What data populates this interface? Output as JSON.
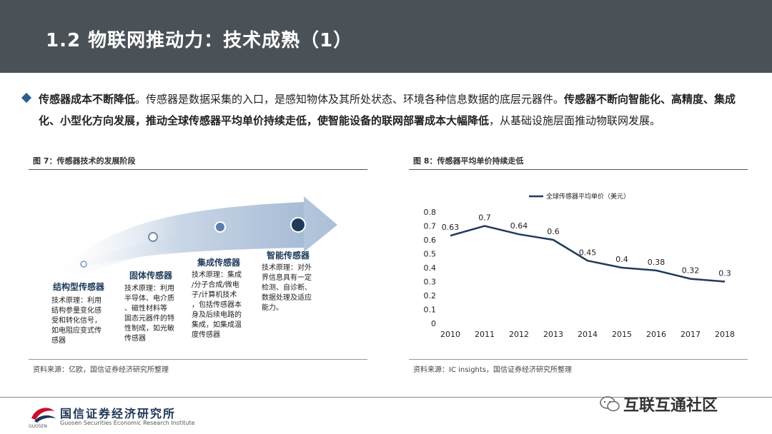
{
  "header": {
    "title": "1.2 物联网推动力：技术成熟（1）"
  },
  "bullet": {
    "b1": "传感器成本不断降低",
    "t1": "。传感器是数据采集的入口，是感知物体及其所处状态、环境各种信息数据的底层元器件。",
    "b2": "传感器不断向智能化、高精度、集成化、小型化方向发展，推动全球传感器平均单价持续走低，使智能设备的联网部署成本大幅降低",
    "t2": "，从基础设施层面推动物联网发展。"
  },
  "fig7": {
    "label": "图 7：传感器技术的发展阶段",
    "source": "资料来源：亿欧，国信证券经济研究所整理",
    "stages": [
      {
        "title": "结构型传感器",
        "desc": [
          "技术原理：利用",
          "结构参量变化感",
          "受和转化信号，",
          "如电阻应变式传",
          "感器"
        ]
      },
      {
        "title": "固体传感器",
        "desc": [
          "技术原理：利用",
          "半导体、电介质",
          "、磁性材料等",
          "固态元器件的特",
          "性制成，如光敏",
          "传感器"
        ]
      },
      {
        "title": "集成传感器",
        "desc": [
          "技术原理：集成",
          "/分子合成/微电",
          "子/计算机技术",
          "，包括传感器本",
          "身及后续电路的",
          "集成，如集成温",
          "度传感器"
        ]
      },
      {
        "title": "智能传感器",
        "desc": [
          "技术原理：对外",
          "界信息具有一定",
          "检测、自诊断、",
          "数据处理及适应",
          "能力。"
        ]
      }
    ]
  },
  "fig8": {
    "label": "图 8：传感器平均单价持续走低",
    "source": "资料来源：IC insights，国信证券经济研究所整理"
  },
  "chart_data": {
    "type": "line",
    "title": "",
    "xlabel": "",
    "ylabel": "",
    "x": [
      "2010",
      "2011",
      "2012",
      "2013",
      "2014",
      "2015",
      "2016",
      "2017",
      "2018"
    ],
    "series": [
      {
        "name": "全球传感器平均单价（美元）",
        "values": [
          0.63,
          0.7,
          0.64,
          0.6,
          0.45,
          0.4,
          0.38,
          0.32,
          0.3
        ]
      }
    ],
    "data_labels": [
      "0.63",
      "0.7",
      "0.64",
      "0.6",
      "0.45",
      "0.4",
      "0.38",
      "0.32",
      "0.3"
    ],
    "yticks": [
      "0",
      "0.1",
      "0.2",
      "0.3",
      "0.4",
      "0.5",
      "0.6",
      "0.7",
      "0.8"
    ],
    "ylim": [
      0,
      0.8
    ],
    "grid": false,
    "legend": "top-left",
    "color": "#1f3b5a"
  },
  "footer": {
    "logo_cn": "国信证券经济研究所",
    "logo_en": "Guosen Securities Economic Research Institute",
    "logo_sub": "GUOSEN",
    "watermark": "互联互通社区"
  }
}
